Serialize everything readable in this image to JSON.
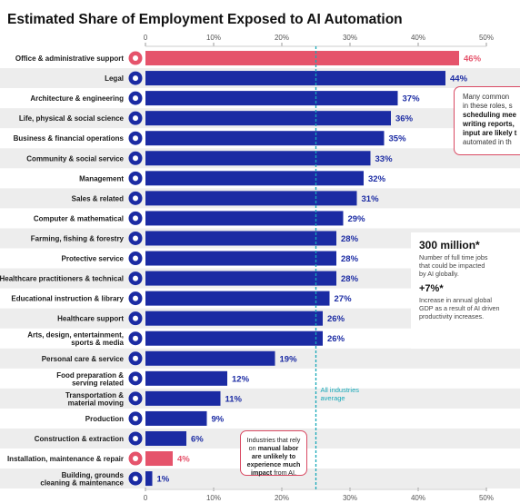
{
  "chart_data": {
    "type": "bar",
    "orientation": "horizontal",
    "title": "Estimated Share of Employment Exposed to AI Automation",
    "categories": [
      "Office & administrative support",
      "Legal",
      "Architecture & engineering",
      "Life, physical & social science",
      "Business & financial operations",
      "Community & social service",
      "Management",
      "Sales & related",
      "Computer & mathematical",
      "Farming, fishing & forestry",
      "Protective service",
      "Healthcare practitioners & technical",
      "Educational instruction & library",
      "Healthcare support",
      "Arts, design, entertainment, sports & media",
      "Personal care & service",
      "Food preparation & serving related",
      "Transportation & material moving",
      "Production",
      "Construction & extraction",
      "Installation, maintenance & repair",
      "Building, grounds cleaning & maintenance"
    ],
    "values": [
      46,
      44,
      37,
      36,
      35,
      33,
      32,
      31,
      29,
      28,
      28,
      28,
      27,
      26,
      26,
      19,
      12,
      11,
      9,
      6,
      4,
      1
    ],
    "value_labels": [
      "46%",
      "44%",
      "37%",
      "36%",
      "35%",
      "33%",
      "32%",
      "31%",
      "29%",
      "28%",
      "28%",
      "28%",
      "27%",
      "26%",
      "26%",
      "19%",
      "12%",
      "11%",
      "9%",
      "6%",
      "4%",
      "1%"
    ],
    "icons": [
      "printer-icon",
      "gavel-icon",
      "building-icon",
      "atom-icon",
      "money-icon",
      "handshake-icon",
      "briefcase-icon",
      "cash-register-icon",
      "laptop-icon",
      "tractor-icon",
      "shield-icon",
      "stethoscope-icon",
      "graduation-cap-icon",
      "heart-icon",
      "masks-icon",
      "hair-dryer-icon",
      "chef-hat-icon",
      "truck-icon",
      "factory-icon",
      "crane-icon",
      "wrench-icon",
      "broom-icon"
    ],
    "highlight": [
      "Office & administrative support",
      "Installation, maintenance & repair"
    ],
    "xlim": [
      0,
      50
    ],
    "x_ticks": [
      0,
      10,
      20,
      30,
      40,
      50
    ],
    "x_tick_labels": [
      "0",
      "10%",
      "20%",
      "30%",
      "40%",
      "50%"
    ],
    "reference_line": {
      "value": 25,
      "label": "All industries average"
    },
    "grid": false,
    "colors": {
      "bar": "#1b2ba3",
      "highlight": "#e5536b",
      "reference": "#17a8b8",
      "stripe": "#ededed"
    }
  },
  "callouts": {
    "top": [
      "Many common",
      "in these roles, s",
      "scheduling mee",
      "writing reports,",
      "input are likely t",
      "automated in th"
    ],
    "bottom_pre": "Industries that rely on ",
    "bottom_bold": "manual labor are unlikely to experience much impact",
    "bottom_post": " from AI."
  },
  "stats": {
    "stat1_value": "300 million*",
    "stat1_text": [
      "Number of full time jobs",
      "that could be impacted",
      "by AI globally."
    ],
    "stat2_value": "+7%*",
    "stat2_text": [
      "Increase in annual global",
      "GDP as a result of AI driven",
      "productivity increases."
    ]
  }
}
